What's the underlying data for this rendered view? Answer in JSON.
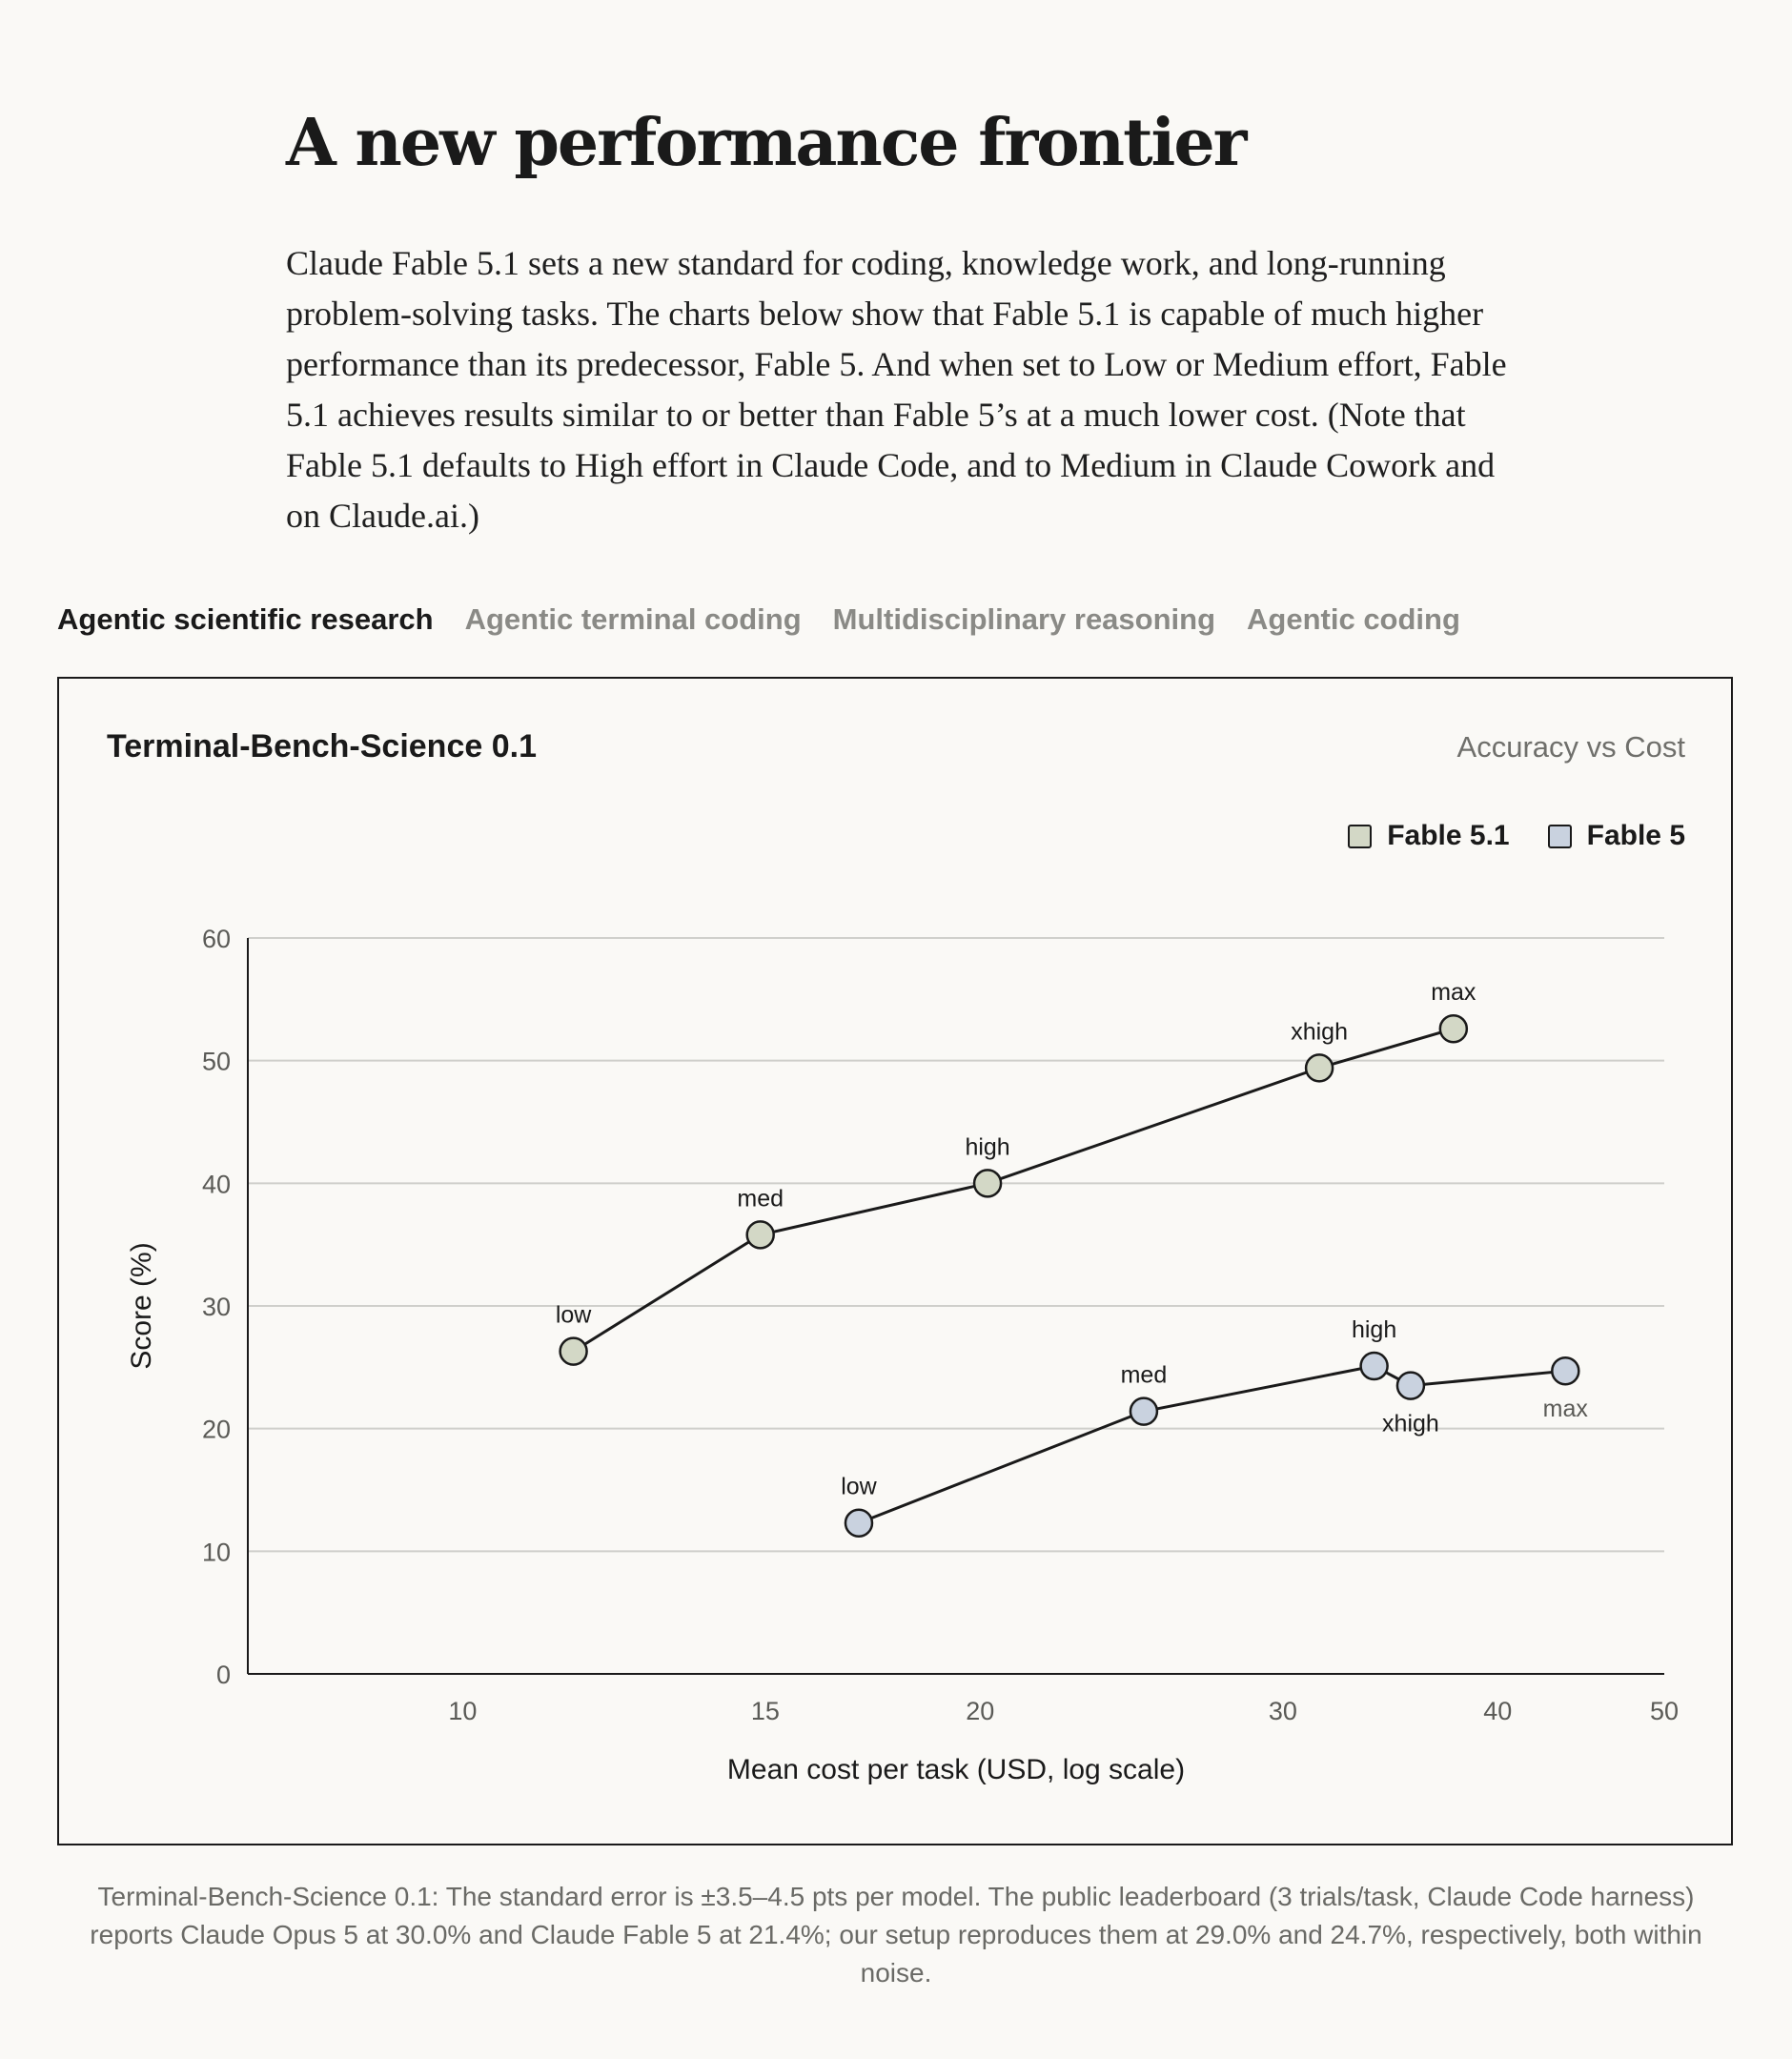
{
  "page": {
    "headline": "A new performance frontier",
    "intro": "Claude Fable 5.1 sets a new standard for coding, knowledge work, and long-running problem-solving tasks. The charts below show that Fable 5.1 is capable of much higher performance than its predecessor, Fable 5. And when set to Low or Medium effort, Fable 5.1 achieves results similar to or better than Fable 5’s at a much lower cost. (Note that Fable 5.1 defaults to High effort in Claude Code, and to Medium in Claude Cowork and on Claude.ai.)",
    "tabs": [
      {
        "label": "Agentic scientific research",
        "active": true
      },
      {
        "label": "Agentic terminal coding",
        "active": false
      },
      {
        "label": "Multidisciplinary reasoning",
        "active": false
      },
      {
        "label": "Agentic coding",
        "active": false
      }
    ],
    "footnote": "Terminal-Bench-Science 0.1: The standard error is ±3.5–4.5 pts per model. The public leaderboard (3 trials/task, Claude Code harness) reports Claude Opus 5 at 30.0% and Claude Fable 5 at 21.4%; our setup reproduces them at 29.0% and 24.7%, respectively, both within noise."
  },
  "chart_data": {
    "type": "line",
    "title": "Terminal-Bench-Science 0.1",
    "subtitle": "Accuracy vs Cost",
    "xlabel": "Mean cost per task (USD, log scale)",
    "ylabel": "Score (%)",
    "x_scale": "log",
    "xlim": [
      7.5,
      50
    ],
    "ylim": [
      0,
      60
    ],
    "x_ticks": [
      10,
      15,
      20,
      30,
      40,
      50
    ],
    "y_ticks": [
      0,
      10,
      20,
      30,
      40,
      50,
      60
    ],
    "grid": "horizontal",
    "legend_position": "top-right",
    "series": [
      {
        "name": "Fable 5.1",
        "color": "#d3d8c6",
        "points": [
          {
            "label": "low",
            "x": 11.6,
            "y": 26.3
          },
          {
            "label": "med",
            "x": 14.9,
            "y": 35.8
          },
          {
            "label": "high",
            "x": 20.2,
            "y": 40.0
          },
          {
            "label": "xhigh",
            "x": 31.5,
            "y": 49.4
          },
          {
            "label": "max",
            "x": 37.7,
            "y": 52.6
          }
        ]
      },
      {
        "name": "Fable 5",
        "color": "#c9d2df",
        "points": [
          {
            "label": "low",
            "x": 17.0,
            "y": 12.3
          },
          {
            "label": "med",
            "x": 24.9,
            "y": 21.4
          },
          {
            "label": "high",
            "x": 33.9,
            "y": 25.1
          },
          {
            "label": "xhigh",
            "x": 35.6,
            "y": 23.5
          },
          {
            "label": "max",
            "x": 43.8,
            "y": 24.7
          }
        ]
      }
    ]
  }
}
